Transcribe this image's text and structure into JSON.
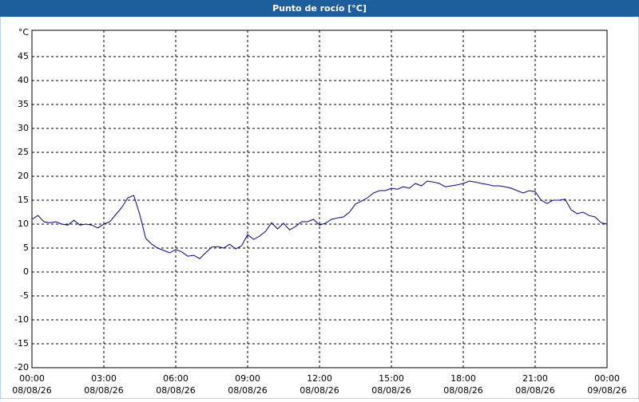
{
  "chart_data": {
    "type": "line",
    "title": "Punto de rocío [°C]",
    "x": [
      0,
      0.25,
      0.5,
      0.75,
      1,
      1.25,
      1.5,
      1.75,
      2,
      2.25,
      2.5,
      2.75,
      3,
      3.25,
      3.5,
      3.75,
      4,
      4.25,
      4.5,
      4.75,
      5,
      5.25,
      5.5,
      5.75,
      6,
      6.25,
      6.5,
      6.75,
      7,
      7.25,
      7.5,
      7.75,
      8,
      8.25,
      8.5,
      8.75,
      9,
      9.25,
      9.5,
      9.75,
      10,
      10.25,
      10.5,
      10.75,
      11,
      11.25,
      11.5,
      11.75,
      12,
      12.25,
      12.5,
      12.75,
      13,
      13.25,
      13.5,
      13.75,
      14,
      14.25,
      14.5,
      14.75,
      15,
      15.25,
      15.5,
      15.75,
      16,
      16.25,
      16.5,
      16.75,
      17,
      17.25,
      17.5,
      17.75,
      18,
      18.25,
      18.5,
      18.75,
      19,
      19.25,
      19.5,
      19.75,
      20,
      20.25,
      20.5,
      20.75,
      21,
      21.25,
      21.5,
      21.75,
      22,
      22.25,
      22.5,
      22.75,
      23,
      23.25,
      23.5,
      23.75,
      24
    ],
    "series": [
      {
        "color": "#0000a0",
        "values": [
          11.0,
          11.8,
          10.5,
          10.3,
          10.5,
          10.0,
          9.8,
          10.8,
          9.8,
          10.0,
          9.8,
          9.2,
          10.0,
          10.5,
          12.0,
          13.5,
          15.5,
          16.0,
          12.0,
          7.0,
          5.8,
          5.0,
          4.5,
          4.0,
          4.7,
          4.2,
          3.3,
          3.5,
          2.8,
          4.0,
          5.2,
          5.3,
          5.0,
          5.8,
          4.8,
          5.5,
          7.8,
          6.8,
          7.5,
          8.5,
          10.3,
          9.0,
          10.2,
          8.8,
          9.5,
          10.5,
          10.5,
          11.0,
          9.8,
          10.2,
          11.0,
          11.3,
          11.5,
          12.5,
          14.2,
          14.8,
          15.5,
          16.5,
          17.0,
          17.0,
          17.5,
          17.3,
          17.8,
          17.5,
          18.5,
          18.0,
          19.0,
          18.8,
          18.5,
          17.8,
          18.0,
          18.2,
          18.5,
          19.0,
          18.8,
          18.5,
          18.3,
          18.0,
          18.0,
          17.8,
          17.5,
          17.0,
          16.5,
          17.0,
          16.8,
          15.0,
          14.3,
          15.0,
          15.0,
          15.2,
          13.0,
          12.2,
          12.5,
          11.8,
          11.5,
          10.3,
          10.0
        ]
      }
    ],
    "xlim": [
      0,
      24
    ],
    "xticks": [
      {
        "value": 0,
        "label": [
          "00:00",
          "08/08/26"
        ]
      },
      {
        "value": 3,
        "label": [
          "03:00",
          "08/08/26"
        ]
      },
      {
        "value": 6,
        "label": [
          "06:00",
          "08/08/26"
        ]
      },
      {
        "value": 9,
        "label": [
          "09:00",
          "08/08/26"
        ]
      },
      {
        "value": 12,
        "label": [
          "12:00",
          "08/08/26"
        ]
      },
      {
        "value": 15,
        "label": [
          "15:00",
          "08/08/26"
        ]
      },
      {
        "value": 18,
        "label": [
          "18:00",
          "08/08/26"
        ]
      },
      {
        "value": 21,
        "label": [
          "21:00",
          "08/08/26"
        ]
      },
      {
        "value": 24,
        "label": [
          "00:00",
          "09/08/26"
        ]
      }
    ],
    "ylim": [
      -20,
      50
    ],
    "yticks": [
      -20,
      -15,
      -10,
      -5,
      0,
      5,
      10,
      15,
      20,
      25,
      30,
      35,
      40,
      45,
      {
        "value": 50,
        "label": "°C"
      }
    ],
    "grid": true
  }
}
